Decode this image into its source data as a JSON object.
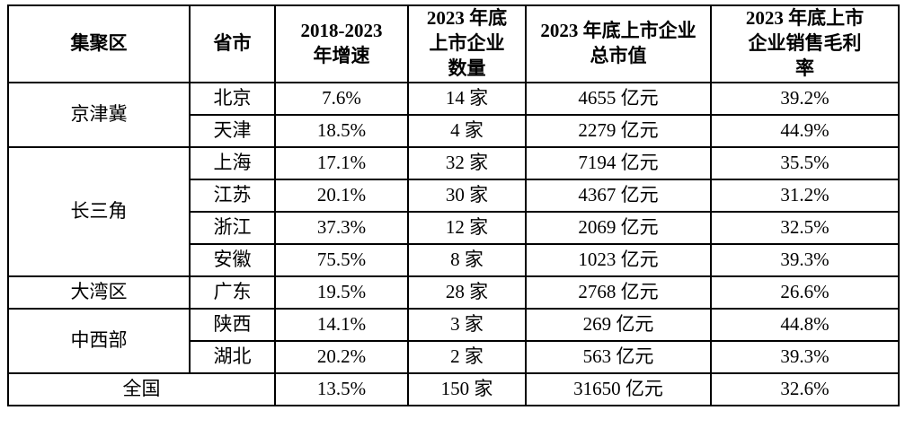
{
  "page": {
    "background_color": "#ffffff",
    "border_color": "#000000",
    "text_color": "#000000"
  },
  "table": {
    "columns": [
      {
        "id": "region",
        "label": "集聚区"
      },
      {
        "id": "province",
        "label": "省市"
      },
      {
        "id": "growth",
        "label": "2018-2023\n年增速"
      },
      {
        "id": "listed_count",
        "label": "2023 年底\n上市企业\n数量"
      },
      {
        "id": "market_value",
        "label": "2023 年底上市企业\n总市值"
      },
      {
        "id": "gross_margin",
        "label": "2023 年底上市\n企业销售毛利\n率"
      }
    ],
    "groups": [
      {
        "region": "京津冀",
        "rows": [
          {
            "province": "北京",
            "growth": "7.6%",
            "count": "14 家",
            "value": "4655 亿元",
            "margin": "39.2%"
          },
          {
            "province": "天津",
            "growth": "18.5%",
            "count": "4 家",
            "value": "2279 亿元",
            "margin": "44.9%"
          }
        ]
      },
      {
        "region": "长三角",
        "rows": [
          {
            "province": "上海",
            "growth": "17.1%",
            "count": "32 家",
            "value": "7194 亿元",
            "margin": "35.5%"
          },
          {
            "province": "江苏",
            "growth": "20.1%",
            "count": "30 家",
            "value": "4367 亿元",
            "margin": "31.2%"
          },
          {
            "province": "浙江",
            "growth": "37.3%",
            "count": "12 家",
            "value": "2069 亿元",
            "margin": "32.5%"
          },
          {
            "province": "安徽",
            "growth": "75.5%",
            "count": "8 家",
            "value": "1023 亿元",
            "margin": "39.3%"
          }
        ]
      },
      {
        "region": "大湾区",
        "rows": [
          {
            "province": "广东",
            "growth": "19.5%",
            "count": "28 家",
            "value": "2768 亿元",
            "margin": "26.6%"
          }
        ]
      },
      {
        "region": "中西部",
        "rows": [
          {
            "province": "陕西",
            "growth": "14.1%",
            "count": "3 家",
            "value": "269 亿元",
            "margin": "44.8%"
          },
          {
            "province": "湖北",
            "growth": "20.2%",
            "count": "2 家",
            "value": "563 亿元",
            "margin": "39.3%"
          }
        ]
      }
    ],
    "total": {
      "label": "全国",
      "growth": "13.5%",
      "count": "150 家",
      "value": "31650 亿元",
      "margin": "32.6%"
    }
  }
}
